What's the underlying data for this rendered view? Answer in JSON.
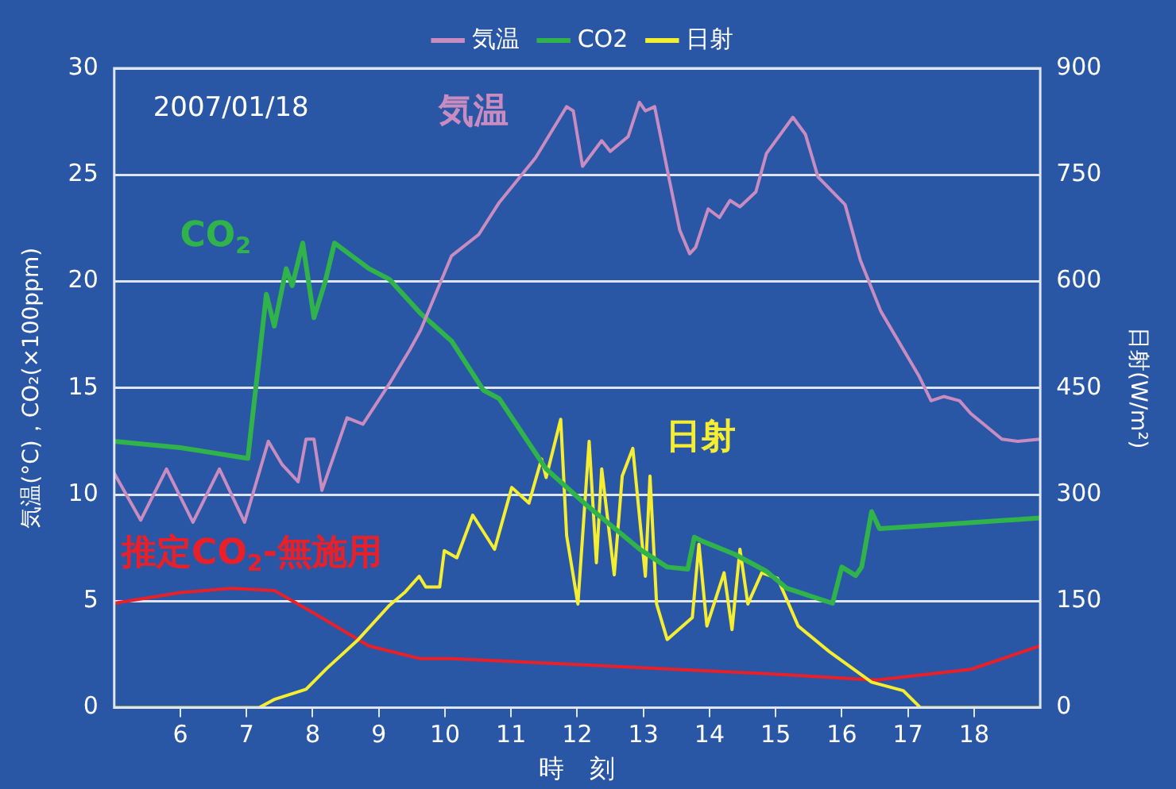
{
  "chart_data": {
    "type": "line",
    "xlabel": "時　刻",
    "ylabel": "気温(°C)，CO₂(×100ppm)",
    "y2label": "日射(W/m²)",
    "xlim": [
      5,
      19
    ],
    "xticks": [
      6,
      7,
      8,
      9,
      10,
      11,
      12,
      13,
      14,
      15,
      16,
      17,
      18
    ],
    "ylim": [
      0,
      30
    ],
    "yticks": [
      0,
      5,
      10,
      15,
      20,
      25,
      30
    ],
    "y2lim": [
      0,
      900
    ],
    "y2ticks": [
      0,
      150,
      300,
      450,
      600,
      750,
      900
    ],
    "grid": "y",
    "legend": "top",
    "marker": "none",
    "line_style": "solid",
    "annotations": [
      "気温",
      "CO$_{2}$",
      "日射",
      "推定CO$_{2}$-無施用",
      "2007/01/18"
    ],
    "series": [
      {
        "name": "気温",
        "color": "#c98cc0",
        "x": [
          5,
          5.4,
          5.79,
          6.19,
          6.59,
          6.97,
          7.33,
          7.54,
          7.78,
          7.9,
          8.02,
          8.14,
          8.52,
          8.76,
          9.16,
          9.47,
          9.63,
          10.1,
          10.51,
          10.82,
          11.37,
          11.84,
          11.94,
          12.08,
          12.37,
          12.5,
          12.77,
          12.94,
          13.03,
          13.17,
          13.39,
          13.55,
          13.7,
          13.79,
          13.98,
          14.15,
          14.31,
          14.46,
          14.7,
          14.86,
          15.26,
          15.45,
          15.64,
          16.05,
          16.28,
          16.59,
          17.16,
          17.35,
          17.54,
          17.78,
          17.95,
          18.42,
          18.66,
          19
        ],
        "values": [
          11,
          8.8,
          11.2,
          8.7,
          11.2,
          8.7,
          12.5,
          11.4,
          10.6,
          12.6,
          12.6,
          10.2,
          13.6,
          13.3,
          15.2,
          16.8,
          17.7,
          21.2,
          22.2,
          23.7,
          25.8,
          28.2,
          28,
          25.4,
          26.6,
          26.1,
          26.8,
          28.4,
          28,
          28.2,
          24.8,
          22.4,
          21.3,
          21.6,
          23.4,
          23,
          23.8,
          23.5,
          24.2,
          26,
          27.7,
          26.9,
          24.9,
          23.6,
          21,
          18.6,
          15.6,
          14.4,
          14.6,
          14.4,
          13.8,
          12.6,
          12.5,
          12.6
        ]
      },
      {
        "name": "CO2",
        "color": "#2fb34a",
        "x": [
          5,
          6,
          7.02,
          7.3,
          7.42,
          7.6,
          7.69,
          7.85,
          8.02,
          8.19,
          8.33,
          8.85,
          9.16,
          9.63,
          10.1,
          10.58,
          10.82,
          11.53,
          12.18,
          12.96,
          13.36,
          13.67,
          13.77,
          13.9,
          14.38,
          14.86,
          15.17,
          15.86,
          16,
          16.21,
          16.3,
          16.45,
          16.57,
          17.54,
          19
        ],
        "values": [
          12.5,
          12.2,
          11.7,
          19.4,
          17.9,
          20.6,
          19.8,
          21.8,
          18.3,
          20,
          21.8,
          20.6,
          20.1,
          18.5,
          17.2,
          14.9,
          14.5,
          11.2,
          9.4,
          7.4,
          6.6,
          6.5,
          8,
          7.8,
          7.2,
          6.4,
          5.6,
          4.9,
          6.6,
          6.2,
          6.6,
          9.2,
          8.4,
          8.6,
          8.9
        ]
      },
      {
        "name": "日射",
        "color": "#f5ee30",
        "axis": "y2",
        "x": [
          5,
          7.19,
          7.43,
          7.9,
          8.21,
          8.69,
          9.16,
          9.4,
          9.61,
          9.71,
          9.92,
          9.99,
          10.18,
          10.42,
          10.75,
          11.01,
          11.27,
          11.46,
          11.53,
          11.75,
          11.84,
          12.01,
          12.18,
          12.29,
          12.37,
          12.56,
          12.68,
          12.84,
          13.03,
          13.1,
          13.2,
          13.36,
          13.74,
          13.84,
          13.96,
          14.22,
          14.34,
          14.46,
          14.58,
          14.79,
          15.03,
          15.34,
          15.81,
          16.45,
          16.93,
          17.19,
          19
        ],
        "values": [
          0,
          0,
          12,
          26,
          55,
          96,
          144,
          163,
          185,
          170,
          170,
          221,
          211,
          271,
          223,
          310,
          288,
          350,
          324,
          406,
          242,
          146,
          375,
          204,
          336,
          187,
          326,
          365,
          185,
          326,
          146,
          96,
          127,
          230,
          115,
          190,
          110,
          223,
          146,
          190,
          182,
          115,
          79,
          36,
          24,
          0,
          0
        ]
      },
      {
        "color": "#e8202a",
        "x": [
          5,
          6,
          6.78,
          7.42,
          8.04,
          8.85,
          9.63,
          10.1,
          14.86,
          16.52,
          17.95,
          19
        ],
        "values": [
          4.9,
          5.4,
          5.6,
          5.5,
          4.4,
          2.9,
          2.3,
          2.3,
          1.6,
          1.3,
          1.8,
          2.9
        ]
      }
    ]
  }
}
